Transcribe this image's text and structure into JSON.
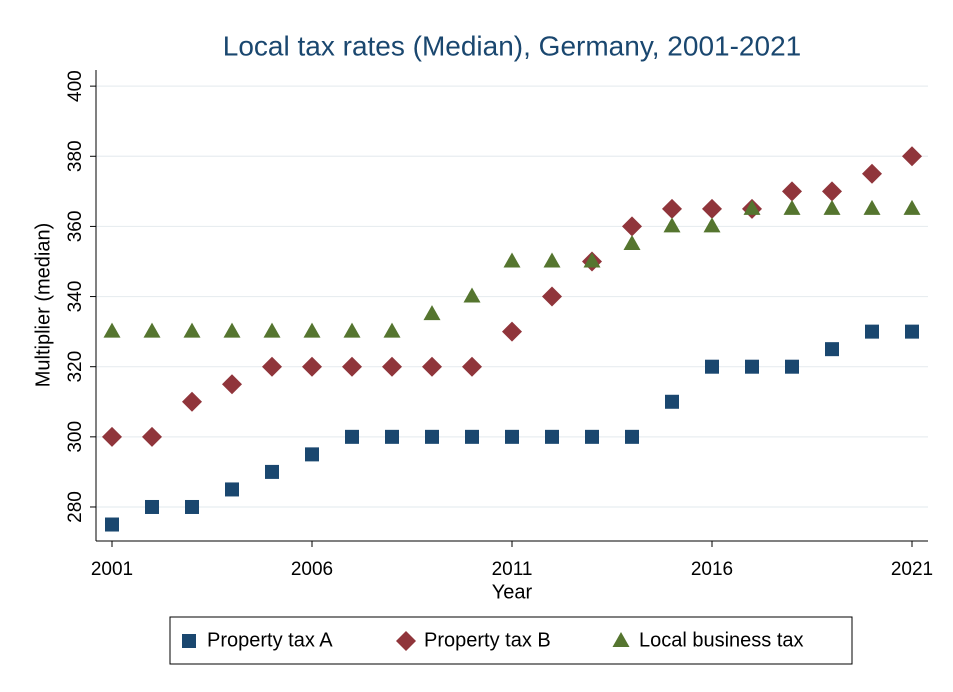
{
  "chart_data": {
    "type": "scatter",
    "title": "Local tax rates (Median), Germany, 2001-2021",
    "x_label": "Year",
    "y_label": "Multiplier (median)",
    "x": [
      2001,
      2002,
      2003,
      2004,
      2005,
      2006,
      2007,
      2008,
      2009,
      2010,
      2011,
      2012,
      2013,
      2014,
      2015,
      2016,
      2017,
      2018,
      2019,
      2020,
      2021
    ],
    "series": [
      {
        "name": "Property tax A",
        "color": "#1a476f",
        "marker": "square",
        "values": [
          275,
          280,
          280,
          285,
          290,
          295,
          300,
          300,
          300,
          300,
          300,
          300,
          300,
          300,
          310,
          320,
          320,
          320,
          325,
          330,
          330
        ]
      },
      {
        "name": "Property tax B",
        "color": "#90353b",
        "marker": "diamond",
        "values": [
          300,
          300,
          310,
          315,
          320,
          320,
          320,
          320,
          320,
          320,
          330,
          340,
          350,
          360,
          365,
          365,
          365,
          370,
          370,
          375,
          380
        ]
      },
      {
        "name": "Local business tax",
        "color": "#55752f",
        "marker": "triangle",
        "values": [
          330,
          330,
          330,
          330,
          330,
          330,
          330,
          330,
          335,
          340,
          350,
          350,
          350,
          355,
          360,
          360,
          365,
          365,
          365,
          365,
          365
        ]
      }
    ],
    "xlim": [
      2000.6,
      2021.4
    ],
    "xticks": [
      2001,
      2006,
      2011,
      2016,
      2021
    ],
    "ylim": [
      270.3,
      404.6
    ],
    "yticks": [
      280,
      300,
      320,
      340,
      360,
      380,
      400
    ],
    "grid": true,
    "legend": "bottom"
  }
}
